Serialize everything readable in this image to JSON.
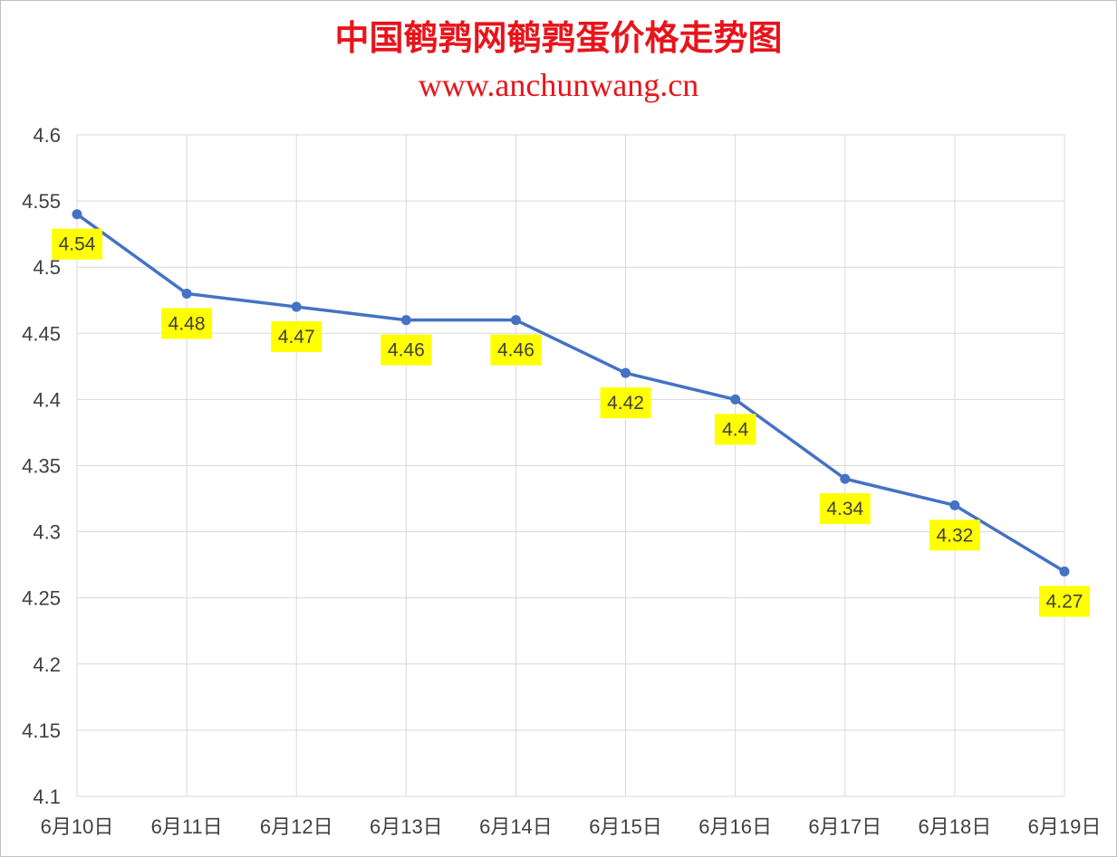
{
  "title": "中国鹌鹑网鹌鹑蛋价格走势图",
  "subtitle": "www.anchunwang.cn",
  "colors": {
    "title": "#e8141b",
    "line": "#4472c4",
    "label_bg": "#ffff00",
    "grid": "#d9d9d9",
    "text": "#404040"
  },
  "chart_data": {
    "type": "line",
    "title": "中国鹌鹑网鹌鹑蛋价格走势图",
    "subtitle": "www.anchunwang.cn",
    "xlabel": "",
    "ylabel": "",
    "categories": [
      "6月10日",
      "6月11日",
      "6月12日",
      "6月13日",
      "6月14日",
      "6月15日",
      "6月16日",
      "6月17日",
      "6月18日",
      "6月19日"
    ],
    "series": [
      {
        "values": [
          4.54,
          4.48,
          4.47,
          4.46,
          4.46,
          4.42,
          4.4,
          4.34,
          4.32,
          4.27
        ]
      }
    ],
    "data_labels": [
      "4.54",
      "4.48",
      "4.47",
      "4.46",
      "4.46",
      "4.42",
      "4.4",
      "4.34",
      "4.32",
      "4.27"
    ],
    "yticks": [
      "4.1",
      "4.15",
      "4.2",
      "4.25",
      "4.3",
      "4.35",
      "4.4",
      "4.45",
      "4.5",
      "4.55",
      "4.6"
    ],
    "ylim": [
      4.1,
      4.6
    ],
    "grid": true,
    "legend": "none"
  }
}
